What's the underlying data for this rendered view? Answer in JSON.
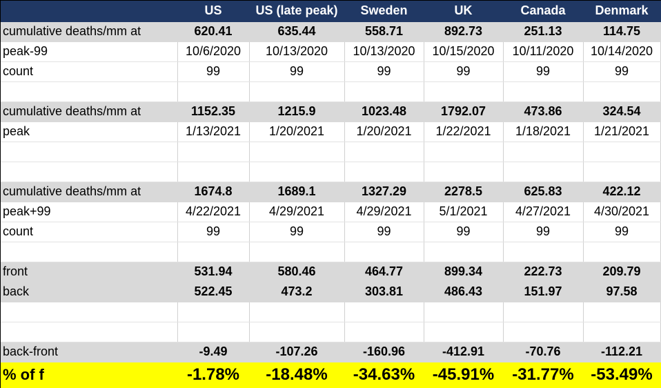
{
  "header": [
    "",
    "US",
    "US (late peak)",
    "Sweden",
    "UK",
    "Canada",
    "Denmark"
  ],
  "rows": [
    {
      "style": "gray",
      "label": "cumulative deaths/mm at",
      "values": [
        "620.41",
        "635.44",
        "558.71",
        "892.73",
        "251.13",
        "114.75"
      ]
    },
    {
      "style": "plain",
      "label": "peak-99",
      "values": [
        "10/6/2020",
        "10/13/2020",
        "10/13/2020",
        "10/15/2020",
        "10/11/2020",
        "10/14/2020"
      ]
    },
    {
      "style": "plain",
      "label": "count",
      "values": [
        "99",
        "99",
        "99",
        "99",
        "99",
        "99"
      ]
    },
    {
      "style": "blank",
      "label": "",
      "values": [
        "",
        "",
        "",
        "",
        "",
        ""
      ]
    },
    {
      "style": "gray",
      "label": "cumulative deaths/mm at",
      "values": [
        "1152.35",
        "1215.9",
        "1023.48",
        "1792.07",
        "473.86",
        "324.54"
      ]
    },
    {
      "style": "plain",
      "label": "peak",
      "values": [
        "1/13/2021",
        "1/20/2021",
        "1/20/2021",
        "1/22/2021",
        "1/18/2021",
        "1/21/2021"
      ]
    },
    {
      "style": "blank",
      "label": "",
      "values": [
        "",
        "",
        "",
        "",
        "",
        ""
      ]
    },
    {
      "style": "blank",
      "label": "",
      "values": [
        "",
        "",
        "",
        "",
        "",
        ""
      ]
    },
    {
      "style": "gray",
      "label": "cumulative deaths/mm at",
      "values": [
        "1674.8",
        "1689.1",
        "1327.29",
        "2278.5",
        "625.83",
        "422.12"
      ]
    },
    {
      "style": "plain",
      "label": "peak+99",
      "values": [
        "4/22/2021",
        "4/29/2021",
        "4/29/2021",
        "5/1/2021",
        "4/27/2021",
        "4/30/2021"
      ]
    },
    {
      "style": "plain",
      "label": "count",
      "values": [
        "99",
        "99",
        "99",
        "99",
        "99",
        "99"
      ]
    },
    {
      "style": "blank",
      "label": "",
      "values": [
        "",
        "",
        "",
        "",
        "",
        ""
      ]
    },
    {
      "style": "gray",
      "label": "front",
      "values": [
        "531.94",
        "580.46",
        "464.77",
        "899.34",
        "222.73",
        "209.79"
      ]
    },
    {
      "style": "gray",
      "label": "back",
      "values": [
        "522.45",
        "473.2",
        "303.81",
        "486.43",
        "151.97",
        "97.58"
      ]
    },
    {
      "style": "blank",
      "label": "",
      "values": [
        "",
        "",
        "",
        "",
        "",
        ""
      ]
    },
    {
      "style": "blank",
      "label": "",
      "values": [
        "",
        "",
        "",
        "",
        "",
        ""
      ]
    },
    {
      "style": "gray",
      "label": "back-front",
      "values": [
        "-9.49",
        "-107.26",
        "-160.96",
        "-412.91",
        "-70.76",
        "-112.21"
      ]
    },
    {
      "style": "yellow",
      "label": "% of f",
      "values": [
        "-1.78%",
        "-18.48%",
        "-34.63%",
        "-45.91%",
        "-31.77%",
        "-53.49%"
      ]
    }
  ],
  "colors": {
    "header_bg": "#203864",
    "header_text": "#ffffff",
    "gray_band": "#d9d9d9",
    "highlight": "#ffff00"
  }
}
